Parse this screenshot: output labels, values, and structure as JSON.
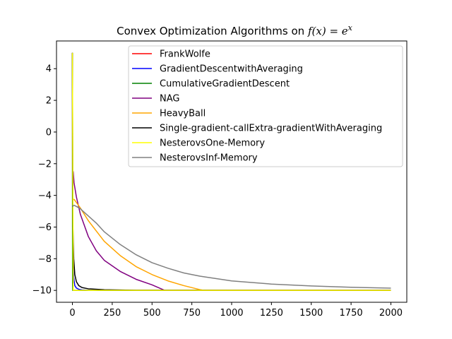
{
  "chart_data": {
    "type": "line",
    "title": "Convex Optimization Algorithms on f(x) = e^x",
    "title_main": "Convex Optimization Algorithms on ",
    "title_math": "f(x) = e",
    "title_exp": "x",
    "xlabel": "",
    "ylabel": "",
    "xlim": [
      -100,
      2100
    ],
    "ylim": [
      -10.75,
      5.75
    ],
    "xticks": [
      0,
      250,
      500,
      750,
      1000,
      1250,
      1500,
      1750,
      2000
    ],
    "yticks": [
      4,
      2,
      0,
      -2,
      -4,
      -6,
      -8,
      -10
    ],
    "ytick_labels": [
      "4",
      "2",
      "0",
      "−2",
      "−4",
      "−6",
      "−8",
      "−10"
    ],
    "grid": false,
    "legend_position": "top-right",
    "series": [
      {
        "name": "FrankWolfe",
        "color": "#ff0000",
        "points": [
          [
            0,
            5
          ],
          [
            1,
            -6
          ],
          [
            2,
            -9
          ],
          [
            3,
            -9.7
          ],
          [
            4,
            -9.95
          ],
          [
            5,
            -10
          ],
          [
            2000,
            -10
          ]
        ]
      },
      {
        "name": "GradientDescentwithAveraging",
        "color": "#0000ff",
        "points": [
          [
            0,
            5
          ],
          [
            2,
            -6
          ],
          [
            4,
            -8
          ],
          [
            8,
            -9.2
          ],
          [
            15,
            -9.7
          ],
          [
            25,
            -9.85
          ],
          [
            40,
            -9.93
          ],
          [
            60,
            -9.97
          ],
          [
            100,
            -10
          ],
          [
            2000,
            -10
          ]
        ]
      },
      {
        "name": "CumulativeGradientDescent",
        "color": "#008000",
        "points": [
          [
            0,
            5
          ],
          [
            0.5,
            -6
          ],
          [
            1,
            -9.5
          ],
          [
            2,
            -10
          ],
          [
            2000,
            -10
          ]
        ]
      },
      {
        "name": "NAG",
        "color": "#800080",
        "points": [
          [
            0,
            -2.5
          ],
          [
            5,
            -2.5
          ],
          [
            10,
            -3.2
          ],
          [
            25,
            -4.1
          ],
          [
            50,
            -5.2
          ],
          [
            100,
            -6.6
          ],
          [
            150,
            -7.5
          ],
          [
            200,
            -8.1
          ],
          [
            300,
            -8.8
          ],
          [
            400,
            -9.3
          ],
          [
            500,
            -9.65
          ],
          [
            580,
            -10
          ],
          [
            2000,
            -10
          ]
        ]
      },
      {
        "name": "HeavyBall",
        "color": "#ffa500",
        "points": [
          [
            0,
            -4.3
          ],
          [
            10,
            -4.25
          ],
          [
            25,
            -4.45
          ],
          [
            50,
            -4.8
          ],
          [
            100,
            -5.6
          ],
          [
            200,
            -6.9
          ],
          [
            300,
            -7.8
          ],
          [
            400,
            -8.5
          ],
          [
            500,
            -9.0
          ],
          [
            600,
            -9.4
          ],
          [
            700,
            -9.7
          ],
          [
            800,
            -9.95
          ],
          [
            830,
            -10
          ],
          [
            2000,
            -10
          ]
        ]
      },
      {
        "name": "Single-gradient-callExtra-gradientWithAveraging",
        "color": "#000000",
        "points": [
          [
            0,
            5
          ],
          [
            3,
            -6
          ],
          [
            8,
            -8
          ],
          [
            15,
            -9.0
          ],
          [
            25,
            -9.45
          ],
          [
            40,
            -9.7
          ],
          [
            60,
            -9.82
          ],
          [
            100,
            -9.9
          ],
          [
            200,
            -9.96
          ],
          [
            400,
            -9.99
          ],
          [
            2000,
            -10
          ]
        ]
      },
      {
        "name": "NesterovsOne-Memory",
        "color": "#ffff00",
        "points": [
          [
            0,
            5
          ],
          [
            5,
            -10
          ],
          [
            2000,
            -10
          ]
        ]
      },
      {
        "name": "NesterovsInf-Memory",
        "color": "#808080",
        "points": [
          [
            0,
            -4.7
          ],
          [
            10,
            -4.62
          ],
          [
            25,
            -4.7
          ],
          [
            50,
            -4.85
          ],
          [
            100,
            -5.3
          ],
          [
            150,
            -5.75
          ],
          [
            200,
            -6.3
          ],
          [
            300,
            -7.1
          ],
          [
            400,
            -7.75
          ],
          [
            500,
            -8.25
          ],
          [
            600,
            -8.6
          ],
          [
            700,
            -8.9
          ],
          [
            800,
            -9.1
          ],
          [
            1000,
            -9.4
          ],
          [
            1250,
            -9.6
          ],
          [
            1500,
            -9.72
          ],
          [
            1750,
            -9.8
          ],
          [
            2000,
            -9.86
          ]
        ]
      }
    ]
  }
}
